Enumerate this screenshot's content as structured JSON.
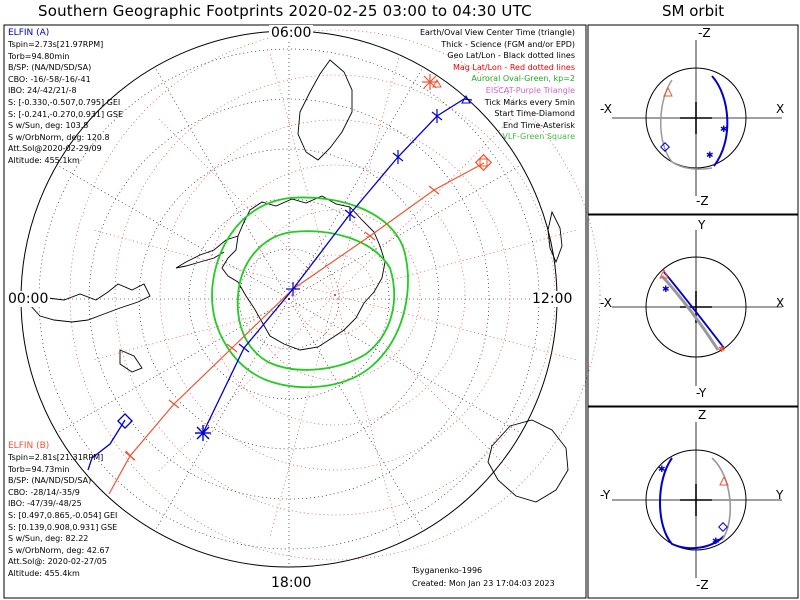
{
  "header": {
    "title": "Southern Geographic Footprints 2020-02-25 03:00 to 04:30 UTC",
    "sm_title": "SM orbit"
  },
  "time_labels": {
    "top": "06:00",
    "left": "00:00",
    "right": "12:00",
    "bottom": "18:00"
  },
  "elfin_a": {
    "name": "ELFIN (A)",
    "color": "#0000cc",
    "lines": [
      "Tspin=2.73s[21.97RPM]",
      "Torb=94.80min",
      "B/SP: (NA/ND/SD/SA)",
      "CBO: -16/-58/-16/-41",
      "IBO: 24/-42/21/-8",
      "S: [-0.330,-0.507,0.795] GEI",
      "S: [-0.241,-0.270,0.931] GSE",
      "S w/Sun, deg: 103.8",
      "S w/OrbNorm, deg: 120.8",
      "Att.Sol@2020-02-29/09",
      "Altitude: 455.1km"
    ]
  },
  "elfin_b": {
    "name": "ELFIN (B)",
    "color": "#ee5533",
    "lines": [
      "Tspin=2.81s[21.31RPM]",
      "Torb=94.73min",
      "B/SP: (NA/ND/SD/SA)",
      "CBO: -28/14/-35/9",
      "IBO: -47/39/-48/25",
      "S: [0.497,0.865,-0.054] GEI",
      "S: [0.139,0.908,0.931] GSE",
      "S w/Sun, deg: 82.22",
      "S w/OrbNorm, deg: 42.67",
      "Att.Sol@: 2020-02-27/05",
      "Altitude: 455.4km"
    ]
  },
  "legend": [
    {
      "text": "Earth/Oval View Center Time (triangle)",
      "color": "#000000"
    },
    {
      "text": "Thick - Science (FGM and/or EPD)",
      "color": "#000000"
    },
    {
      "text": "Geo Lat/Lon - Black dotted lines",
      "color": "#000000"
    },
    {
      "text": "Mag Lat/Lon - Red dotted lines",
      "color": "#ee0000"
    },
    {
      "text": "Auroral Oval-Green, kp=2",
      "color": "#22aa22"
    },
    {
      "text": "EISCAT-Purple Triangle",
      "color": "#cc66cc"
    },
    {
      "text": "Tick Marks every 5min",
      "color": "#000000"
    },
    {
      "text": "Start Time-Diamond",
      "color": "#000000"
    },
    {
      "text": "End Time-Asterisk",
      "color": "#000000"
    },
    {
      "text": "VLF-Green Square",
      "color": "#44bb44"
    }
  ],
  "credits": {
    "model": "Tsyganenko-1996",
    "created": "Created: Mon Jan 23 17:04:03 2023"
  },
  "sm_panels": [
    {
      "top": "-Z",
      "bottom": "-Z",
      "left": "-X",
      "right": "X"
    },
    {
      "top": "Y",
      "bottom": "-Y",
      "left": "-X",
      "right": "X"
    },
    {
      "top": "Z",
      "bottom": "-Z",
      "left": "-Y",
      "right": "Y"
    }
  ],
  "colors": {
    "elfin_a": "#0000cc",
    "elfin_b": "#ee5533",
    "auroral_oval": "#22cc22",
    "mag_grid": "#dd2222",
    "geo_grid": "#000000"
  }
}
